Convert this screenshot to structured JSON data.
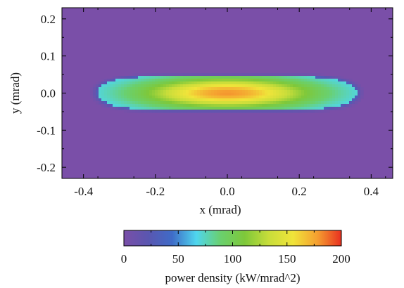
{
  "chart_data": {
    "type": "heatmap",
    "title": "",
    "xlabel": "x (mrad)",
    "ylabel": "y (mrad)",
    "xlim": [
      -0.46,
      0.46
    ],
    "ylim": [
      -0.23,
      0.23
    ],
    "x_ticks": [
      -0.4,
      -0.2,
      0.0,
      0.2,
      0.4
    ],
    "x_tick_labels": [
      "-0.4",
      "-0.2",
      "0.0",
      "0.2",
      "0.4"
    ],
    "y_ticks": [
      -0.2,
      -0.1,
      0.0,
      0.1,
      0.2
    ],
    "y_tick_labels": [
      "-0.2",
      "-0.1",
      "0.0",
      "0.1",
      "0.2"
    ],
    "grid": false,
    "distribution": {
      "center_x": 0.0,
      "center_y": 0.0,
      "half_width_x": 0.36,
      "half_height_y": 0.045,
      "peak_value": 180,
      "background_value": 0
    },
    "colorbar": {
      "label": "power density (kW/mrad^2)",
      "range": [
        0,
        200
      ],
      "ticks": [
        0,
        50,
        100,
        150,
        200
      ],
      "tick_labels": [
        "0",
        "50",
        "100",
        "150",
        "200"
      ],
      "placement": "bottom",
      "colors": [
        "#7a4fa8",
        "#5a56b0",
        "#3f6cc8",
        "#4fd6ee",
        "#6ad06e",
        "#7ec83a",
        "#c8dd3a",
        "#f0e43a",
        "#f5a030",
        "#e83020"
      ]
    }
  }
}
